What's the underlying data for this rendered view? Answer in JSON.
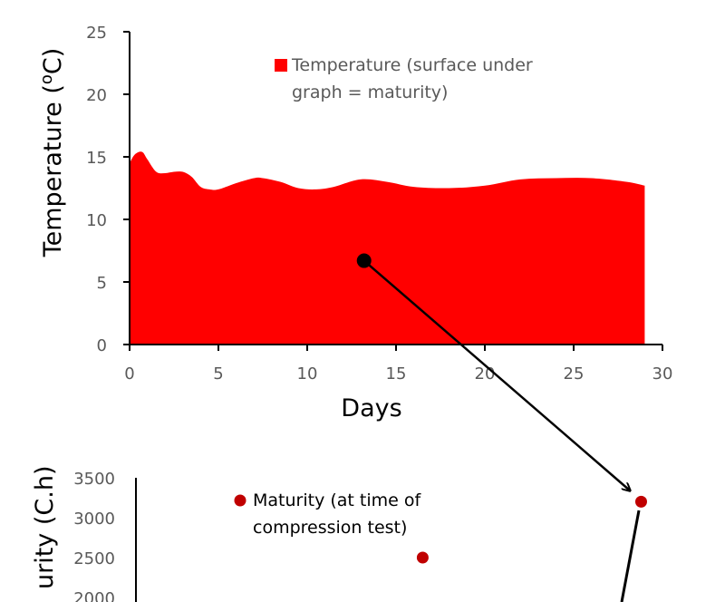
{
  "chart_data": [
    {
      "type": "area",
      "xlabel": "Days",
      "ylabel": "Temperature (oC)",
      "ylabel_main": "Temperature (",
      "ylabel_sup": "o",
      "ylabel_tail": "C)",
      "xlim": [
        0,
        30
      ],
      "ylim": [
        0,
        25
      ],
      "x_ticks": [
        0,
        5,
        10,
        15,
        20,
        25,
        30
      ],
      "y_ticks": [
        0,
        5,
        10,
        15,
        20,
        25
      ],
      "grid": false,
      "legend_position": "top-right",
      "series": [
        {
          "name": "Temperature (surface under graph = maturity)",
          "legend_line1": "Temperature (surface under",
          "legend_line2": "graph = maturity)",
          "color": "#ff0000",
          "x": [
            0,
            0.3,
            0.7,
            1.0,
            1.5,
            2.0,
            2.5,
            3.0,
            3.5,
            4.0,
            4.5,
            5.0,
            6.0,
            7.0,
            7.5,
            8.5,
            9.5,
            10.5,
            11.5,
            13.0,
            14.5,
            16.0,
            18.0,
            20.0,
            22.0,
            24.0,
            26.0,
            28.0,
            29.0
          ],
          "y": [
            14.5,
            15.2,
            15.4,
            14.8,
            13.8,
            13.7,
            13.8,
            13.8,
            13.4,
            12.6,
            12.4,
            12.4,
            12.9,
            13.3,
            13.3,
            13.0,
            12.5,
            12.4,
            12.6,
            13.2,
            13.0,
            12.6,
            12.5,
            12.7,
            13.2,
            13.3,
            13.3,
            13.0,
            12.7
          ]
        }
      ],
      "marker": {
        "x": 13.2,
        "y": 6.7,
        "color": "#000000"
      }
    },
    {
      "type": "scatter",
      "ylabel": "Maturity (C.h)",
      "ylabel_visible": "urity (C.h)",
      "y_ticks": [
        2000,
        2500,
        3000,
        3500
      ],
      "ylim": [
        2000,
        3500
      ],
      "grid": false,
      "legend_position": "top-left",
      "series": [
        {
          "name": "Maturity (at time of compression test)",
          "legend_line1": "Maturity (at time of",
          "legend_line2": "compression test)",
          "color": "#c00000",
          "points": [
            {
              "x": 16.5,
              "y": 2500
            },
            {
              "x": 28.8,
              "y": 3200
            }
          ]
        }
      ]
    }
  ]
}
